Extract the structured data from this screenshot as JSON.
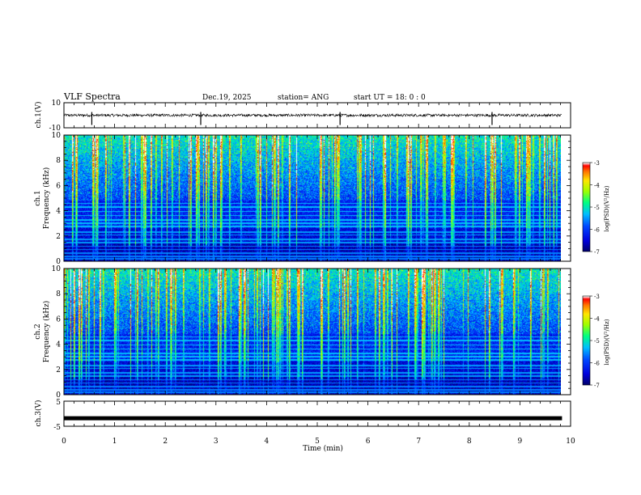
{
  "header": {
    "title": "VLF Spectra",
    "date": "Dec.19, 2025",
    "station": "station= ANG",
    "start": "start  UT =   18: 0  : 0"
  },
  "chart_data": [
    {
      "id": "ch1-waveform",
      "type": "line",
      "ylabel": "ch.1(V)",
      "ylim": [
        -10,
        10
      ],
      "ytick_labels": [
        "10",
        "-10"
      ],
      "baseline": 0,
      "spike_times_min": [
        0.55,
        2.7,
        5.45,
        8.45
      ]
    },
    {
      "id": "ch1-spectrogram",
      "type": "heatmap",
      "ylabel_line1": "ch.1",
      "ylabel_line2": "Frequency (kHz)",
      "ylim": [
        0,
        10
      ],
      "ytick_labels": [
        "0",
        "2",
        "4",
        "6",
        "8",
        "10"
      ],
      "colorbar": {
        "label": "log(PSD)(V²/Hz)",
        "ticks": [
          "-3",
          "-4",
          "-5",
          "-6",
          "-7"
        ],
        "range": [
          -7,
          -3
        ]
      },
      "colormap": [
        "#00008b",
        "#0000ff",
        "#00bfff",
        "#00ff80",
        "#ffff00",
        "#ff8000",
        "#ff0000",
        "#ffffff"
      ]
    },
    {
      "id": "ch2-spectrogram",
      "type": "heatmap",
      "ylabel_line1": "ch.2",
      "ylabel_line2": "Frequency (kHz)",
      "ylim": [
        0,
        10
      ],
      "ytick_labels": [
        "0",
        "2",
        "4",
        "6",
        "8",
        "10"
      ],
      "colorbar": {
        "label": "log(PSD)(V²/Hz)",
        "ticks": [
          "-3",
          "-4",
          "-5",
          "-6",
          "-7"
        ],
        "range": [
          -7,
          -3
        ]
      }
    },
    {
      "id": "ch3-waveform",
      "type": "line",
      "ylabel": "ch.3(V)",
      "ylim": [
        -5,
        5
      ],
      "ytick_labels": [
        "5",
        "-5"
      ],
      "baseline": -1.8
    }
  ],
  "x_axis": {
    "label": "Time (min)",
    "range": [
      0,
      10
    ],
    "data_end": 9.83,
    "tick_labels": [
      "0",
      "1",
      "2",
      "3",
      "4",
      "5",
      "6",
      "7",
      "8",
      "9",
      "10"
    ]
  }
}
